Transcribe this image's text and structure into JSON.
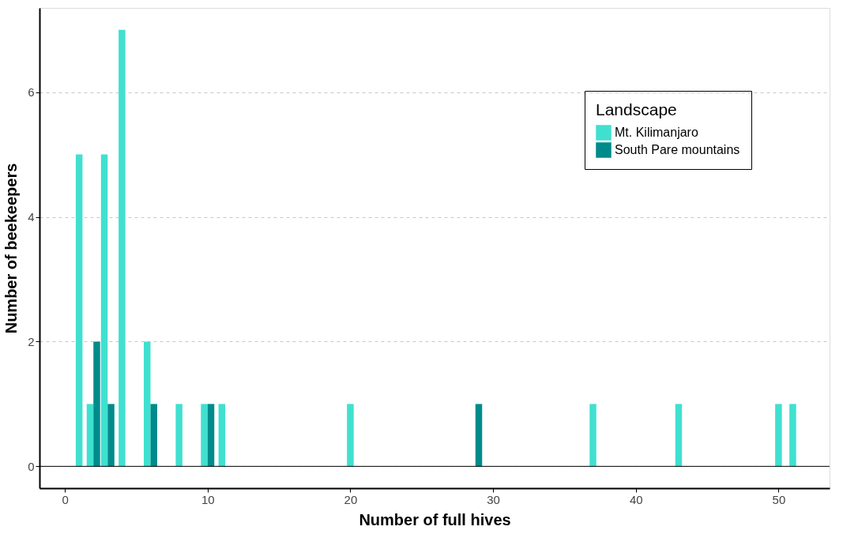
{
  "chart_data": {
    "type": "bar",
    "xlabel": "Number of full hives",
    "ylabel": "Number of beekeepers",
    "legend_title": "Landscape",
    "series": [
      {
        "name": "Mt. Kilimanjaro",
        "color": "#40e0d0",
        "x": [
          1,
          2,
          3,
          4,
          6,
          8,
          10,
          11,
          20,
          37,
          43,
          50,
          51
        ],
        "values": [
          5,
          1,
          5,
          7,
          2,
          1,
          1,
          1,
          1,
          1,
          1,
          1,
          1
        ]
      },
      {
        "name": "South Pare mountains",
        "color": "#008b8b",
        "x": [
          2,
          3,
          6,
          10,
          29
        ],
        "values": [
          2,
          1,
          1,
          1,
          1
        ]
      }
    ],
    "xlim": [
      -1.5,
      53.3
    ],
    "xticks": [
      0,
      10,
      20,
      30,
      40,
      50
    ],
    "ylim": [
      -0.35,
      7.35
    ],
    "yticks": [
      0,
      2,
      4,
      6
    ],
    "ref_lines": [
      {
        "axis": "y",
        "value": 0,
        "color": "#000000",
        "line_style": "solid"
      }
    ],
    "grid": "y",
    "legend": "top right"
  }
}
